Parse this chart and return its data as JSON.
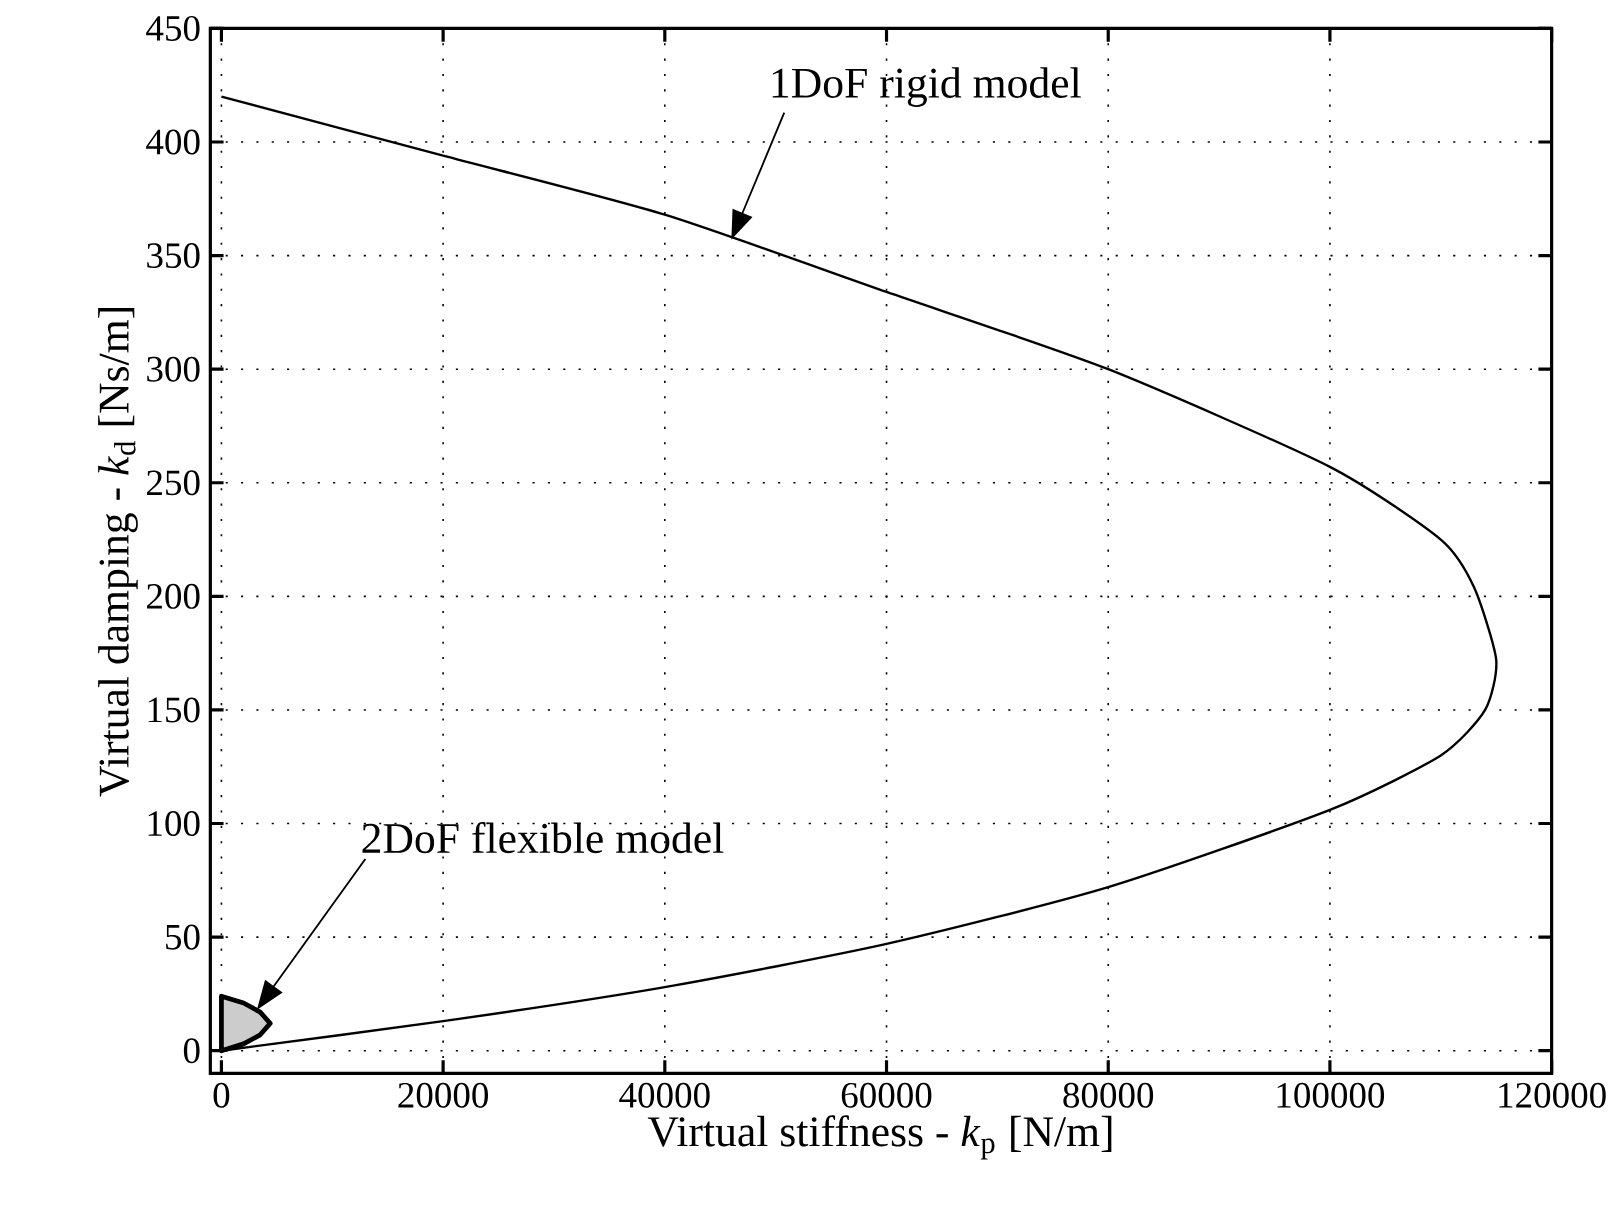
{
  "chart_data": {
    "type": "line",
    "xlabel": "Virtual stiffness - *k*$_{p}$ [N/m]",
    "ylabel": "Virtual damping - *k*$_{d}$ [Ns/m]",
    "series": [
      {
        "color": "#000000",
        "x": [
          0,
          20000,
          40000,
          60000,
          80000,
          100000,
          110000,
          113000,
          115000,
          114000,
          110000,
          100000,
          80000,
          60000,
          40000,
          20000,
          0
        ],
        "values": [
          420,
          394,
          368,
          334,
          300,
          257,
          225,
          204,
          172,
          150,
          130,
          106,
          72,
          47,
          28,
          13,
          0
        ]
      },
      {
        "type": "area",
        "color": "#cccccc",
        "x": [
          0,
          2000,
          3500,
          4400,
          3500,
          2000,
          0
        ],
        "values": [
          24,
          21,
          17,
          12,
          7,
          3,
          0
        ]
      }
    ],
    "annotations": [
      "1DoF rigid model",
      "2DoF flexible model"
    ],
    "xlim": [
      -1000,
      120000
    ],
    "ylim": [
      -10,
      450
    ],
    "xticks": [
      0,
      20000,
      40000,
      60000,
      80000,
      100000,
      120000
    ],
    "yticks": [
      0,
      50,
      100,
      150,
      200,
      250,
      300,
      350,
      400,
      450
    ],
    "grid": true
  }
}
